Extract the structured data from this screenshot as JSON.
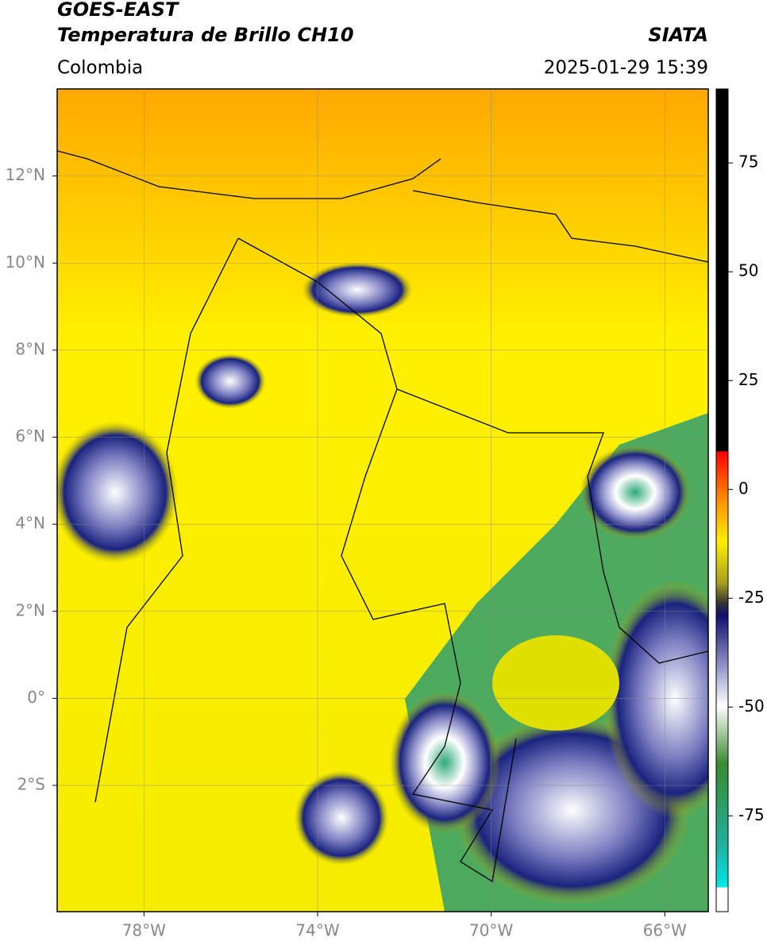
{
  "header": {
    "title": "GOES-EAST",
    "subtitle": "Temperatura de Brillo CH10",
    "source": "SIATA",
    "region": "Colombia",
    "datetime": "2025-01-29 15:39"
  },
  "map": {
    "xlim": [
      -80,
      -65
    ],
    "ylim": [
      -4.9,
      14
    ],
    "xticks": [
      {
        "value": -78,
        "label": "78°W"
      },
      {
        "value": -74,
        "label": "74°W"
      },
      {
        "value": -70,
        "label": "70°W"
      },
      {
        "value": -66,
        "label": "66°W"
      }
    ],
    "yticks": [
      {
        "value": 12,
        "label": "12°N"
      },
      {
        "value": 10,
        "label": "10°N"
      },
      {
        "value": 8,
        "label": "8°N"
      },
      {
        "value": 6,
        "label": "6°N"
      },
      {
        "value": 4,
        "label": "4°N"
      },
      {
        "value": 2,
        "label": "2°N"
      },
      {
        "value": 0,
        "label": "0°"
      },
      {
        "value": -2,
        "label": "2°S"
      }
    ],
    "grid": true
  },
  "colorbar": {
    "lim": [
      -97,
      92
    ],
    "ticks": [
      75,
      50,
      25,
      0,
      -25,
      -50,
      -75
    ]
  }
}
